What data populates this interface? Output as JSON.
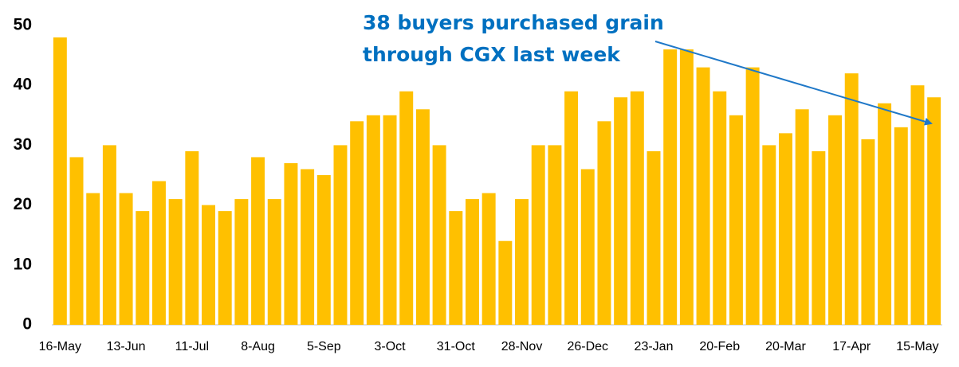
{
  "chart_data": {
    "type": "bar",
    "annotation": [
      "38 buyers purchased grain",
      "through CGX last week"
    ],
    "categories": [
      "16-May",
      null,
      null,
      null,
      "13-Jun",
      null,
      null,
      null,
      "11-Jul",
      null,
      null,
      null,
      "8-Aug",
      null,
      null,
      null,
      "5-Sep",
      null,
      null,
      null,
      "3-Oct",
      null,
      null,
      null,
      "31-Oct",
      null,
      null,
      null,
      "28-Nov",
      null,
      null,
      null,
      "26-Dec",
      null,
      null,
      null,
      "23-Jan",
      null,
      null,
      null,
      "20-Feb",
      null,
      null,
      null,
      "20-Mar",
      null,
      null,
      null,
      "17-Apr",
      null,
      null,
      null,
      "15-May",
      null
    ],
    "values": [
      48,
      28,
      22,
      30,
      22,
      19,
      24,
      21,
      29,
      20,
      19,
      21,
      28,
      21,
      27,
      26,
      25,
      30,
      34,
      35,
      35,
      39,
      36,
      30,
      19,
      21,
      22,
      14,
      21,
      30,
      30,
      39,
      26,
      34,
      38,
      39,
      29,
      46,
      46,
      43,
      39,
      35,
      43,
      30,
      32,
      36,
      29,
      35,
      42,
      31,
      37,
      33,
      40,
      38
    ],
    "color": "#ffc000",
    "ylim": [
      0,
      50
    ],
    "yticks": [
      0,
      10,
      20,
      30,
      40,
      50
    ],
    "grid": false
  }
}
